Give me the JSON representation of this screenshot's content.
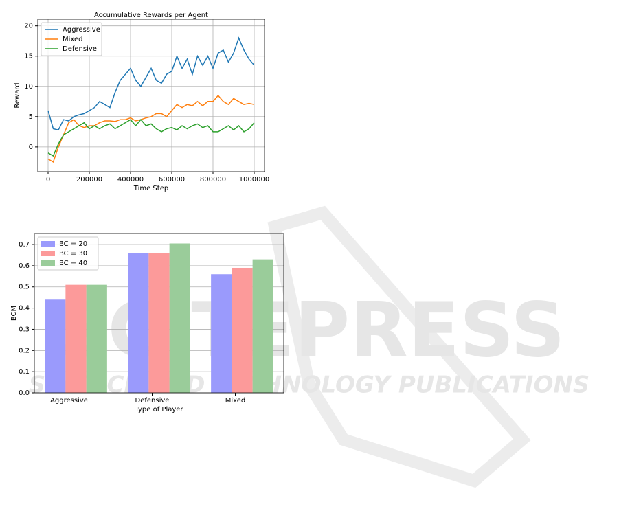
{
  "watermark": {
    "brand": "SCITEPRESS",
    "tagline": "SCIENCE AND TECHNOLOGY PUBLICATIONS"
  },
  "chart_data": [
    {
      "type": "line",
      "title": "Accumulative Rewards per Agent",
      "x_label": "Time Step",
      "y_label": "Reward",
      "x": [
        0,
        25000,
        50000,
        75000,
        100000,
        125000,
        150000,
        175000,
        200000,
        225000,
        250000,
        275000,
        300000,
        325000,
        350000,
        375000,
        400000,
        425000,
        450000,
        475000,
        500000,
        525000,
        550000,
        575000,
        600000,
        625000,
        650000,
        675000,
        700000,
        725000,
        750000,
        775000,
        800000,
        825000,
        850000,
        875000,
        900000,
        925000,
        950000,
        975000,
        1000000
      ],
      "series": [
        {
          "name": "Aggressive",
          "color": "#1f77b4",
          "values": [
            6,
            3,
            2.8,
            4.5,
            4.3,
            5,
            5.3,
            5.5,
            6,
            6.5,
            7.5,
            7,
            6.5,
            9,
            11,
            12,
            13,
            11,
            10,
            11.5,
            13,
            11,
            10.5,
            12,
            12.5,
            15,
            13,
            14.5,
            12,
            15,
            13.5,
            15,
            13,
            15.5,
            16,
            14,
            15.5,
            18,
            16,
            14.5,
            13.5
          ]
        },
        {
          "name": "Mixed",
          "color": "#ff7f0e",
          "values": [
            -2,
            -2.5,
            0,
            2,
            4,
            4.5,
            3.5,
            3.2,
            3.5,
            3.5,
            4,
            4.3,
            4.3,
            4.2,
            4.5,
            4.5,
            4.8,
            4.3,
            4.5,
            4.8,
            5,
            5.5,
            5.5,
            5,
            6,
            7,
            6.5,
            7,
            6.8,
            7.5,
            6.8,
            7.5,
            7.5,
            8.5,
            7.5,
            7,
            8,
            7.5,
            7,
            7.2,
            7
          ]
        },
        {
          "name": "Defensive",
          "color": "#2ca02c",
          "values": [
            -1,
            -1.5,
            0.5,
            2,
            2.5,
            3,
            3.5,
            4,
            3,
            3.5,
            3,
            3.5,
            3.8,
            3,
            3.5,
            4,
            4.5,
            3.5,
            4.5,
            3.5,
            3.8,
            3,
            2.5,
            3,
            3.2,
            2.8,
            3.5,
            3,
            3.5,
            3.8,
            3.2,
            3.5,
            2.5,
            2.5,
            3,
            3.5,
            2.8,
            3.5,
            2.5,
            3,
            4
          ]
        }
      ],
      "xlim": [
        -50000,
        1050000
      ],
      "xticks": [
        0,
        200000,
        400000,
        600000,
        800000,
        1000000
      ],
      "ylim": [
        -4.1,
        21.1
      ],
      "yticks": [
        0,
        5,
        10,
        15,
        20
      ],
      "grid": true,
      "legend": "upper left"
    },
    {
      "type": "grouped-bar",
      "x_label": "Type of Player",
      "y_label": "BCM",
      "categories": [
        "Aggressive",
        "Defensive",
        "Mixed"
      ],
      "series": [
        {
          "name": "BC = 20",
          "color": "#9a9afc",
          "values": [
            0.44,
            0.66,
            0.56
          ]
        },
        {
          "name": "BC = 30",
          "color": "#fc9a9a",
          "values": [
            0.51,
            0.66,
            0.59
          ]
        },
        {
          "name": "BC = 40",
          "color": "#9acc9a",
          "values": [
            0.51,
            0.705,
            0.63
          ]
        }
      ],
      "ylim": [
        0,
        0.752
      ],
      "yticks": [
        {
          "value": 0,
          "label": "0.0"
        },
        {
          "value": 0.1,
          "label": "0.1"
        },
        {
          "value": 0.2,
          "label": "0.2"
        },
        {
          "value": 0.3,
          "label": "0.3"
        },
        {
          "value": 0.4,
          "label": "0.4"
        },
        {
          "value": 0.5,
          "label": "0.5"
        },
        {
          "value": 0.6,
          "label": "0.6"
        },
        {
          "value": 0.7,
          "label": "0.7"
        }
      ],
      "grid": true,
      "legend": "upper left"
    }
  ]
}
